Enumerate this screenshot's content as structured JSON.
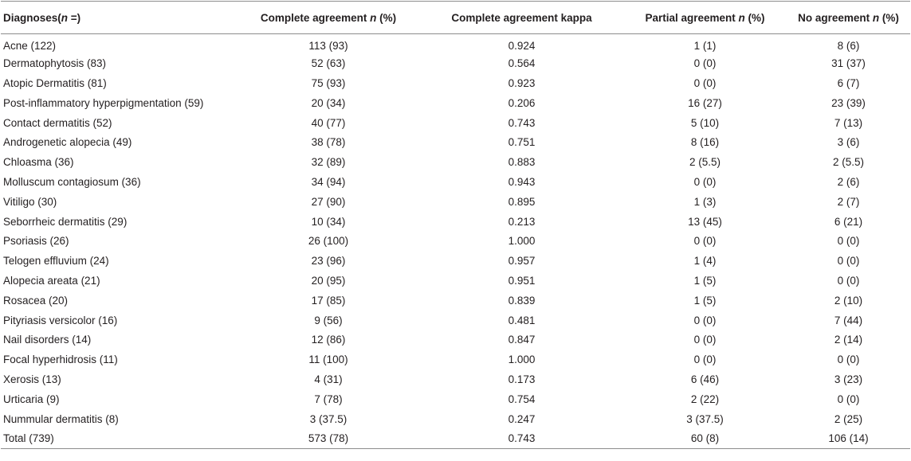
{
  "table": {
    "headers": [
      {
        "pre": "Diagnoses(",
        "ital": "n",
        "post": " =)"
      },
      {
        "pre": "Complete agreement ",
        "ital": "n",
        "post": " (%)"
      },
      {
        "pre": "Complete agreement kappa",
        "ital": "",
        "post": ""
      },
      {
        "pre": "Partial agreement ",
        "ital": "n",
        "post": " (%)"
      },
      {
        "pre": "No agreement ",
        "ital": "n",
        "post": " (%)"
      }
    ],
    "rows": [
      [
        "Acne (122)",
        "113 (93)",
        "0.924",
        "1 (1)",
        "8 (6)"
      ],
      [
        "Dermatophytosis (83)",
        "52 (63)",
        "0.564",
        "0 (0)",
        "31 (37)"
      ],
      [
        "Atopic Dermatitis (81)",
        "75 (93)",
        "0.923",
        "0 (0)",
        "6 (7)"
      ],
      [
        "Post-inflammatory hyperpigmentation (59)",
        "20 (34)",
        "0.206",
        "16 (27)",
        "23 (39)"
      ],
      [
        "Contact dermatitis (52)",
        "40 (77)",
        "0.743",
        "5 (10)",
        "7 (13)"
      ],
      [
        "Androgenetic alopecia (49)",
        "38 (78)",
        "0.751",
        "8 (16)",
        "3 (6)"
      ],
      [
        "Chloasma (36)",
        "32 (89)",
        "0.883",
        "2 (5.5)",
        "2 (5.5)"
      ],
      [
        "Molluscum contagiosum (36)",
        "34 (94)",
        "0.943",
        "0 (0)",
        "2 (6)"
      ],
      [
        "Vitiligo (30)",
        "27 (90)",
        "0.895",
        "1 (3)",
        "2 (7)"
      ],
      [
        "Seborrheic dermatitis (29)",
        "10 (34)",
        "0.213",
        "13 (45)",
        "6 (21)"
      ],
      [
        "Psoriasis (26)",
        "26 (100)",
        "1.000",
        "0 (0)",
        "0 (0)"
      ],
      [
        "Telogen effluvium (24)",
        "23 (96)",
        "0.957",
        "1 (4)",
        "0 (0)"
      ],
      [
        "Alopecia areata (21)",
        "20 (95)",
        "0.951",
        "1 (5)",
        "0 (0)"
      ],
      [
        "Rosacea (20)",
        "17 (85)",
        "0.839",
        "1 (5)",
        "2 (10)"
      ],
      [
        "Pityriasis versicolor (16)",
        "9 (56)",
        "0.481",
        "0 (0)",
        "7 (44)"
      ],
      [
        "Nail disorders (14)",
        "12 (86)",
        "0.847",
        "0 (0)",
        "2 (14)"
      ],
      [
        "Focal hyperhidrosis (11)",
        "11 (100)",
        "1.000",
        "0 (0)",
        "0 (0)"
      ],
      [
        "Xerosis (13)",
        "4 (31)",
        "0.173",
        "6 (46)",
        "3 (23)"
      ],
      [
        "Urticaria (9)",
        "7 (78)",
        "0.754",
        "2 (22)",
        "0 (0)"
      ],
      [
        "Nummular dermatitis (8)",
        "3 (37.5)",
        "0.247",
        "3 (37.5)",
        "2 (25)"
      ],
      [
        "Total (739)",
        "573 (78)",
        "0.743",
        "60 (8)",
        "106 (14)"
      ]
    ]
  }
}
